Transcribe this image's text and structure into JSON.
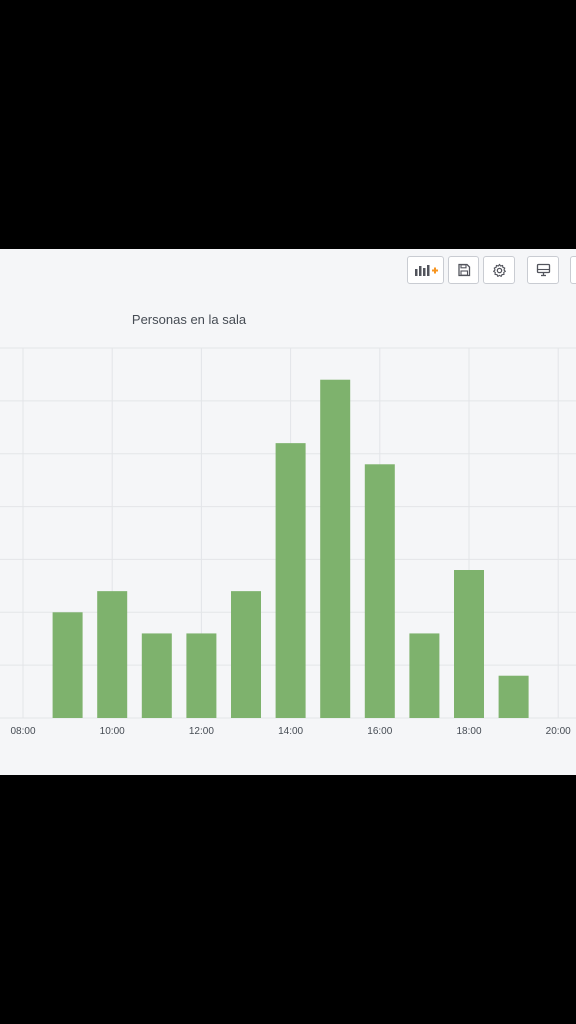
{
  "toolbar": {
    "buttons": [
      {
        "name": "add-panel-button",
        "icon": "add-panel-icon"
      },
      {
        "name": "save-dashboard-button",
        "icon": "save-icon"
      },
      {
        "name": "settings-button",
        "icon": "gear-icon"
      },
      {
        "name": "tv-mode-button",
        "icon": "monitor-icon"
      }
    ],
    "accent_color": "#f79520"
  },
  "panel": {
    "title": "Personas en la sala"
  },
  "chart_data": {
    "type": "bar",
    "title": "Personas en la sala",
    "xlabel": "",
    "ylabel": "",
    "x_ticks": [
      "08:00",
      "10:00",
      "12:00",
      "14:00",
      "16:00",
      "18:00",
      "20:00"
    ],
    "categories": [
      "09:00",
      "10:00",
      "11:00",
      "12:00",
      "13:00",
      "14:00",
      "15:00",
      "16:00",
      "17:00",
      "18:00",
      "19:00"
    ],
    "values": [
      5,
      6,
      4,
      4,
      6,
      13,
      16,
      12,
      4,
      7,
      2
    ],
    "ylim": [
      0,
      17.5
    ],
    "grid": true,
    "bar_color": "#7eb26d"
  }
}
